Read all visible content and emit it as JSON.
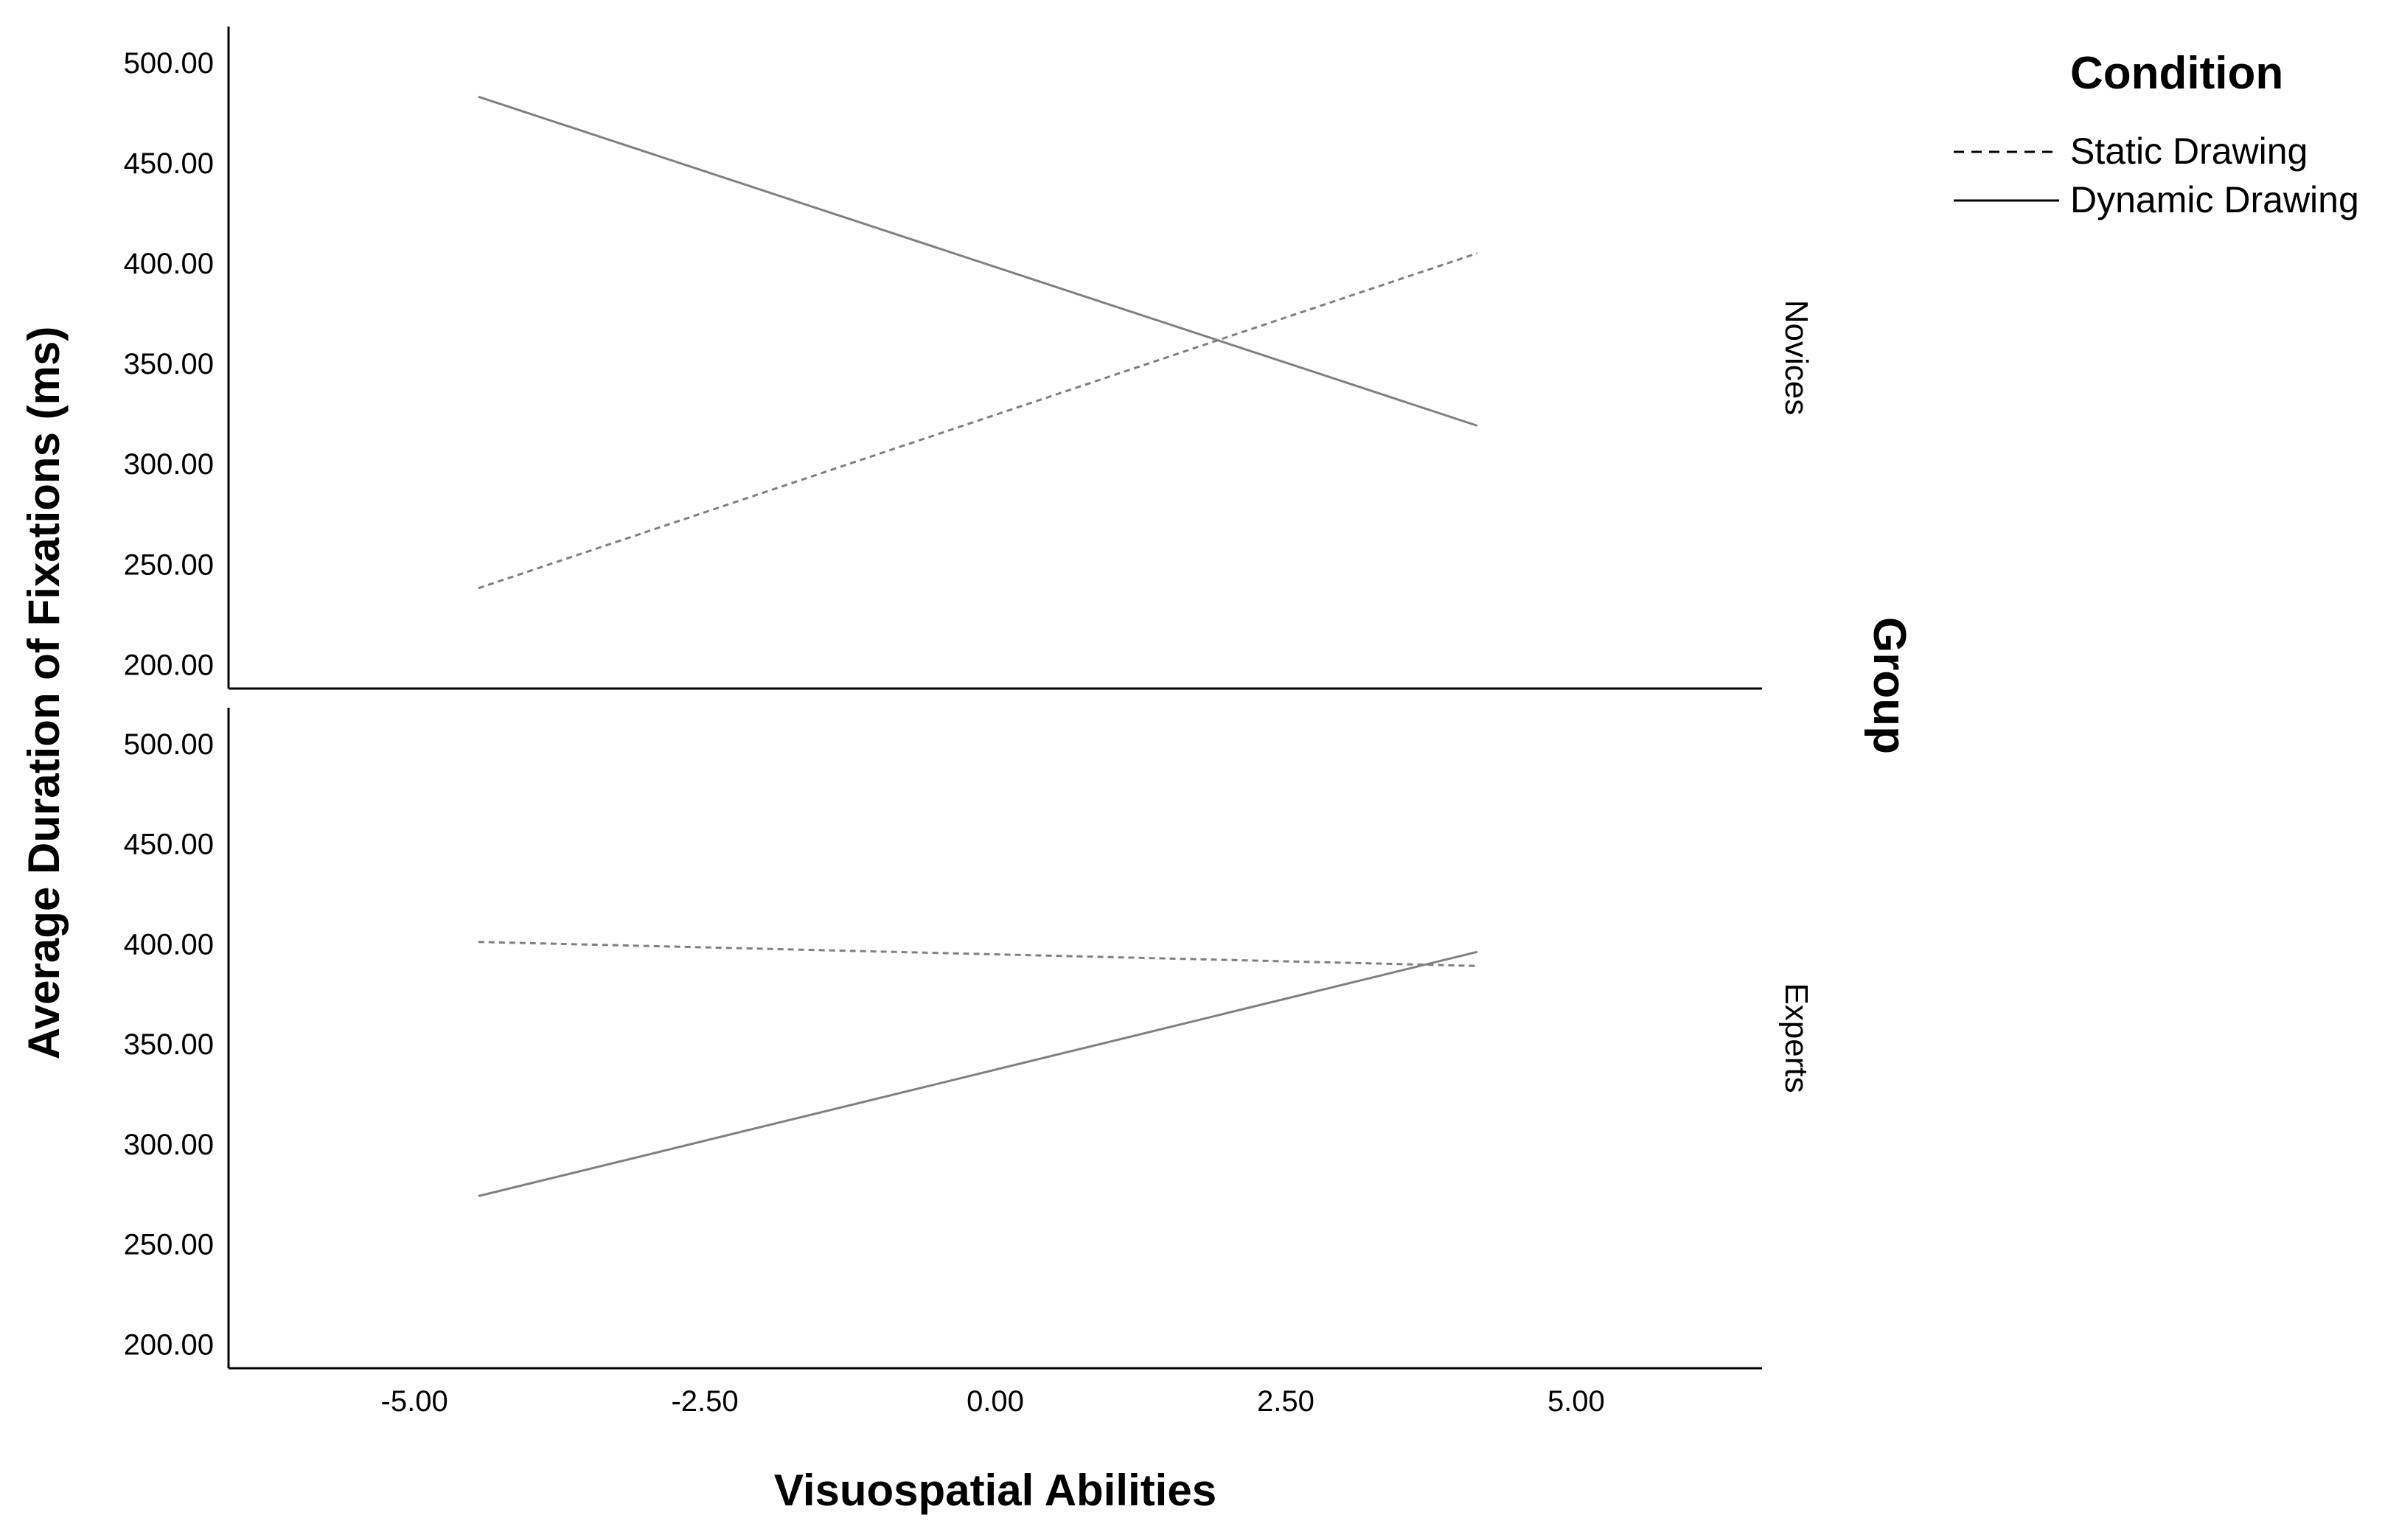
{
  "chart_data": {
    "type": "line",
    "xlabel": "Visuospatial Abilities",
    "ylabel": "Average Duration of Fixations (ms)",
    "xlim": [
      -6.6,
      6.6
    ],
    "ylim": [
      188,
      518
    ],
    "x_ticks": [
      "-5.00",
      "-2.50",
      "0.00",
      "2.50",
      "5.00"
    ],
    "x_tick_values": [
      -5,
      -2.5,
      0,
      2.5,
      5
    ],
    "y_ticks": [
      "200.00",
      "250.00",
      "300.00",
      "350.00",
      "400.00",
      "450.00",
      "500.00"
    ],
    "y_tick_values": [
      200,
      250,
      300,
      350,
      400,
      450,
      500
    ],
    "legend": {
      "title": "Condition",
      "placement": "top-right",
      "entries": [
        {
          "name": "Static Drawing",
          "style": "dashed"
        },
        {
          "name": "Dynamic Drawing",
          "style": "solid"
        }
      ]
    },
    "facet_title": "Group",
    "line_color": "#808080",
    "panels": [
      {
        "label": "Novices",
        "series": [
          {
            "name": "Static Drawing",
            "style": "dashed",
            "x": [
              -4.45,
              4.15
            ],
            "y": [
              238,
              405
            ]
          },
          {
            "name": "Dynamic Drawing",
            "style": "solid",
            "x": [
              -4.45,
              4.15
            ],
            "y": [
              483,
              319
            ]
          }
        ]
      },
      {
        "label": "Experts",
        "series": [
          {
            "name": "Static Drawing",
            "style": "dashed",
            "x": [
              -4.45,
              4.15
            ],
            "y": [
              401,
              389
            ]
          },
          {
            "name": "Dynamic Drawing",
            "style": "solid",
            "x": [
              -4.45,
              4.15
            ],
            "y": [
              274,
              396
            ]
          }
        ]
      }
    ]
  }
}
